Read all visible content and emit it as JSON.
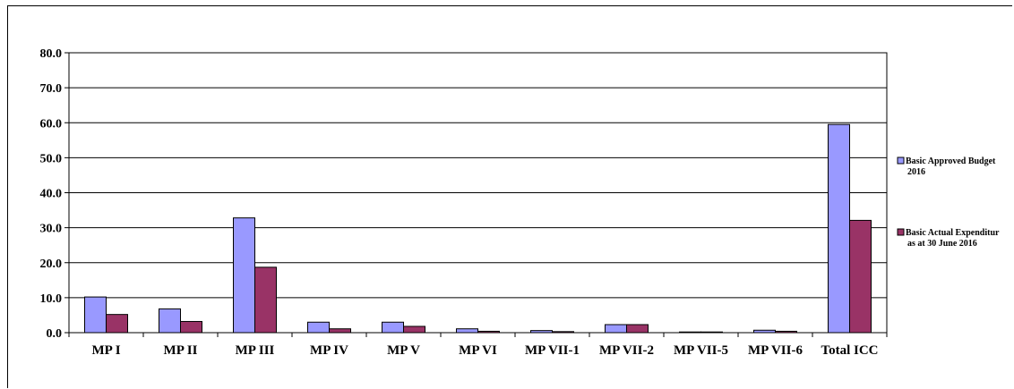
{
  "chart_data": {
    "type": "bar",
    "categories": [
      "MP I",
      "MP II",
      "MP III",
      "MP IV",
      "MP V",
      "MP VI",
      "MP VII-1",
      "MP VII-2",
      "MP VII-5",
      "MP VII-6",
      "Total ICC"
    ],
    "series": [
      {
        "name": "Basic Approved Budget 2016",
        "legend_lines": [
          "Basic Approved Budget",
          "2016"
        ],
        "color": "#9999ff",
        "values": [
          10.2,
          6.8,
          32.8,
          3.0,
          3.0,
          1.1,
          0.6,
          2.3,
          0.2,
          0.7,
          59.5
        ]
      },
      {
        "name": "Basic Actual Expenditure as at 30 June 2016",
        "legend_lines": [
          "Basic Actual Expenditur",
          "as at 30 June 2016"
        ],
        "color": "#993366",
        "values": [
          5.2,
          3.2,
          18.7,
          1.1,
          1.8,
          0.4,
          0.3,
          2.3,
          0.2,
          0.4,
          32.1
        ]
      }
    ],
    "yticks": [
      "0.0",
      "10.0",
      "20.0",
      "30.0",
      "40.0",
      "50.0",
      "60.0",
      "70.0",
      "80.0"
    ],
    "ylim": [
      0,
      80
    ],
    "grid": true,
    "legend_position": "right",
    "title": "",
    "xlabel": "",
    "ylabel": ""
  }
}
